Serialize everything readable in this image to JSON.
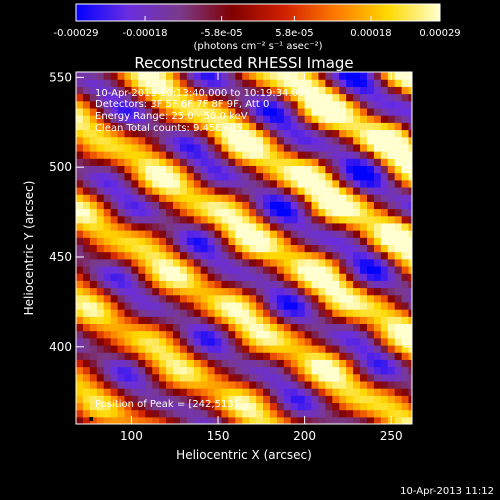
{
  "colorbar": {
    "tick_labels": [
      "-0.00029",
      "-0.00018",
      "-5.8e-05",
      "5.8e-05",
      "0.00018",
      "0.00029"
    ],
    "tick_values": [
      -0.00029,
      -0.00018,
      -5.8e-05,
      5.8e-05,
      0.00018,
      0.00029
    ],
    "range": [
      -0.00029,
      0.00029
    ],
    "unit_label": "(photons cm⁻² s⁻¹ asec⁻²)",
    "colors": [
      "#0000ff",
      "#6a2de0",
      "#7a3a8a",
      "#800000",
      "#d02000",
      "#ff7a00",
      "#ffd800",
      "#ffffd0"
    ]
  },
  "chart_data": {
    "type": "heatmap",
    "title": "Reconstructed RHESSI Image",
    "xlabel": "Heliocentric X (arcsec)",
    "ylabel": "Heliocentric Y (arcsec)",
    "xlim": [
      68,
      262
    ],
    "ylim": [
      357,
      553
    ],
    "xticks": [
      100,
      150,
      200,
      250
    ],
    "yticks": [
      400,
      450,
      500,
      550
    ],
    "pattern": {
      "description_units": "arcsec",
      "stripe_angle_deg": -32,
      "stripe_period": 42,
      "peak": [
        242,
        513
      ]
    },
    "annotations": {
      "time_range": "10-Apr-2013 10:13:40.000 to 10:19:34.000",
      "detectors": "Detectors: 3F 5F 6F 7F 8F 9F, Att 0",
      "energy_range": "Energy Range: 25.0 - 50.0 keV",
      "method_counts": "Clean     Total counts: 9.45E+05",
      "peak_position": "Position of Peak = [242,513]"
    }
  },
  "footer": {
    "timestamp": "10-Apr-2013 11:12"
  }
}
